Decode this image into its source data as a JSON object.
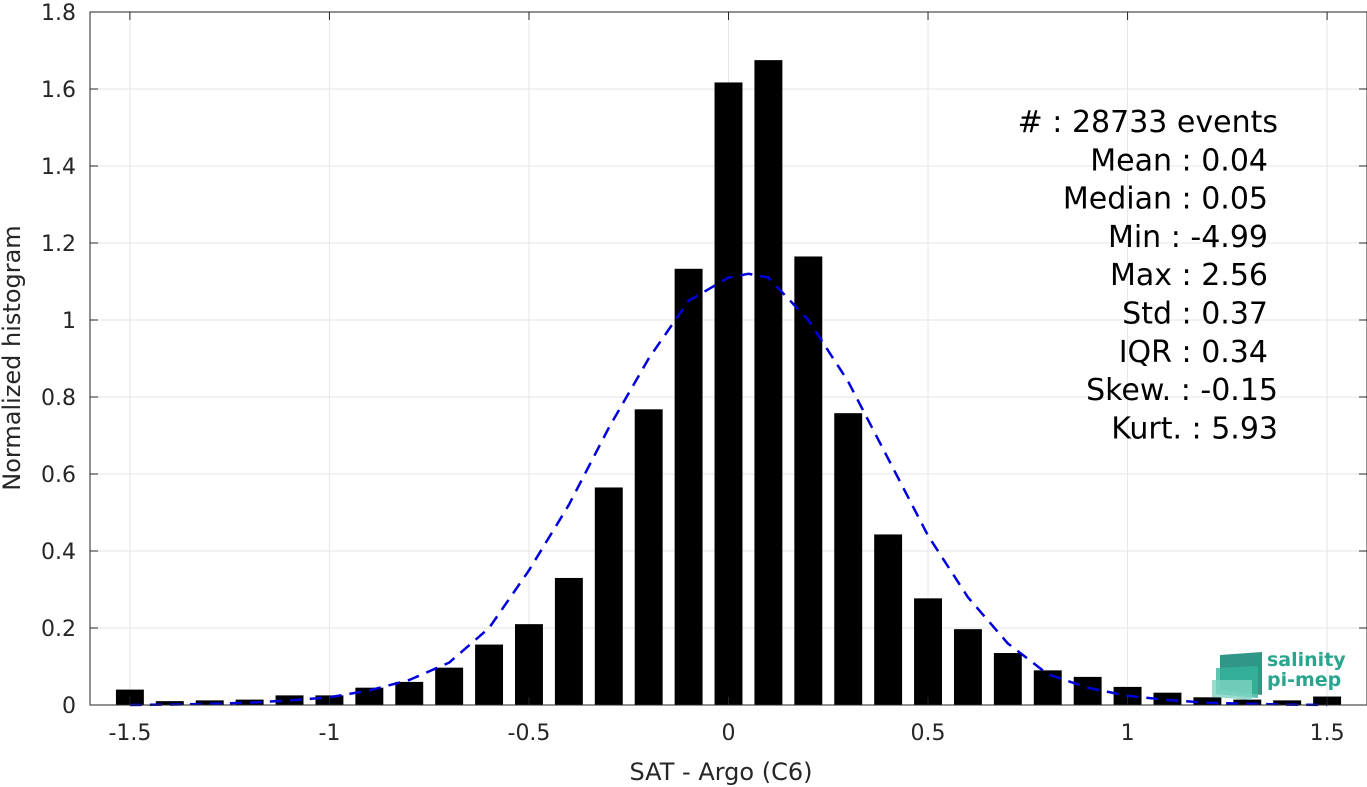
{
  "chart_data": {
    "type": "bar",
    "xlabel": "SAT - Argo (C6)",
    "ylabel": "Normalized histogram",
    "xlim": [
      -1.6,
      1.6
    ],
    "ylim": [
      0,
      1.8
    ],
    "grid": true,
    "x_ticks": [
      -1.5,
      -1,
      -0.5,
      0,
      0.5,
      1,
      1.5
    ],
    "x_tick_labels": [
      "-1.5",
      "-1",
      "-0.5",
      "0",
      "0.5",
      "1",
      "1.5"
    ],
    "y_ticks": [
      0,
      0.2,
      0.4,
      0.6,
      0.8,
      1,
      1.2,
      1.4,
      1.6,
      1.8
    ],
    "y_tick_labels": [
      "0",
      "0.2",
      "0.4",
      "0.6",
      "0.8",
      "1",
      "1.2",
      "1.4",
      "1.6",
      "1.8"
    ],
    "bin_centers": [
      -1.5,
      -1.4,
      -1.3,
      -1.2,
      -1.1,
      -1.0,
      -0.9,
      -0.8,
      -0.7,
      -0.6,
      -0.5,
      -0.4,
      -0.3,
      -0.2,
      -0.1,
      0.0,
      0.1,
      0.2,
      0.3,
      0.4,
      0.5,
      0.6,
      0.7,
      0.8,
      0.9,
      1.0,
      1.1,
      1.2,
      1.3,
      1.4,
      1.5
    ],
    "bar_width": 0.07,
    "values": [
      0.04,
      0.01,
      0.012,
      0.014,
      0.025,
      0.025,
      0.045,
      0.06,
      0.097,
      0.157,
      0.21,
      0.33,
      0.565,
      0.768,
      1.133,
      1.617,
      1.675,
      1.165,
      0.758,
      0.443,
      0.277,
      0.197,
      0.135,
      0.09,
      0.073,
      0.047,
      0.032,
      0.02,
      0.014,
      0.012,
      0.022
    ],
    "bar_color": "#000000",
    "fit_curve": {
      "style": "dashed",
      "color": "#0000dd",
      "x": [
        -1.5,
        -1.4,
        -1.3,
        -1.2,
        -1.1,
        -1.0,
        -0.9,
        -0.8,
        -0.7,
        -0.6,
        -0.5,
        -0.4,
        -0.3,
        -0.2,
        -0.1,
        0.0,
        0.05,
        0.1,
        0.2,
        0.3,
        0.4,
        0.5,
        0.6,
        0.7,
        0.8,
        0.9,
        1.0,
        1.1,
        1.2,
        1.3,
        1.4,
        1.5
      ],
      "y": [
        0.0,
        0.001,
        0.003,
        0.006,
        0.012,
        0.02,
        0.038,
        0.065,
        0.11,
        0.2,
        0.35,
        0.52,
        0.72,
        0.9,
        1.05,
        1.11,
        1.12,
        1.11,
        1.0,
        0.84,
        0.64,
        0.44,
        0.28,
        0.16,
        0.08,
        0.045,
        0.024,
        0.013,
        0.006,
        0.003,
        0.001,
        0.0
      ]
    }
  },
  "stats": [
    {
      "label": "#  : 28733 events"
    },
    {
      "label": "Mean : 0.04"
    },
    {
      "label": "Median : 0.05"
    },
    {
      "label": "Min : -4.99"
    },
    {
      "label": "Max : 2.56"
    },
    {
      "label": "Std : 0.37"
    },
    {
      "label": "IQR : 0.34"
    },
    {
      "label": "Skew. : -0.15"
    },
    {
      "label": "Kurt. : 5.93"
    }
  ],
  "logo": {
    "line1": "salinity",
    "line2": "pi-mep",
    "colors": [
      "#1a8c7a",
      "#34b59c",
      "#7fd3c2"
    ]
  }
}
